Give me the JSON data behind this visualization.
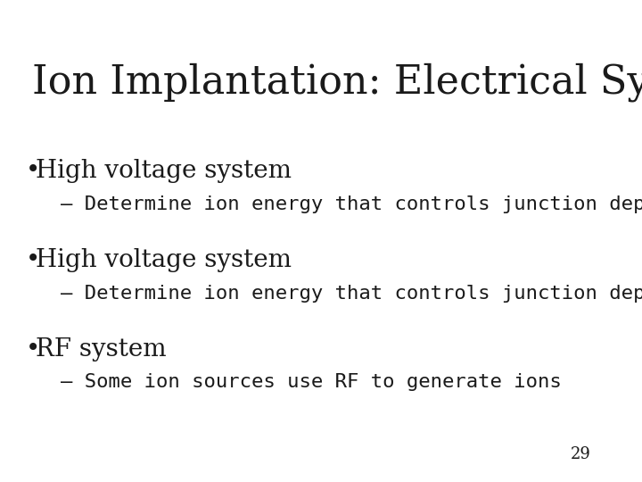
{
  "title": "Ion Implantation: Electrical System",
  "background_color": "#ffffff",
  "text_color": "#1a1a1a",
  "title_fontsize": 32,
  "bullet_fontsize": 20,
  "sub_fontsize": 16,
  "page_number": "29",
  "bullets": [
    {
      "bullet": "High voltage system",
      "sub": "– Determine ion energy that controls junction depth"
    },
    {
      "bullet": "High voltage system",
      "sub": "– Determine ion energy that controls junction depth"
    },
    {
      "bullet": "RF system",
      "sub": "– Some ion sources use RF to generate ions"
    }
  ],
  "title_font": "DejaVu Serif",
  "bullet_font": "DejaVu Serif",
  "sub_font": "DejaVu Sans Mono"
}
